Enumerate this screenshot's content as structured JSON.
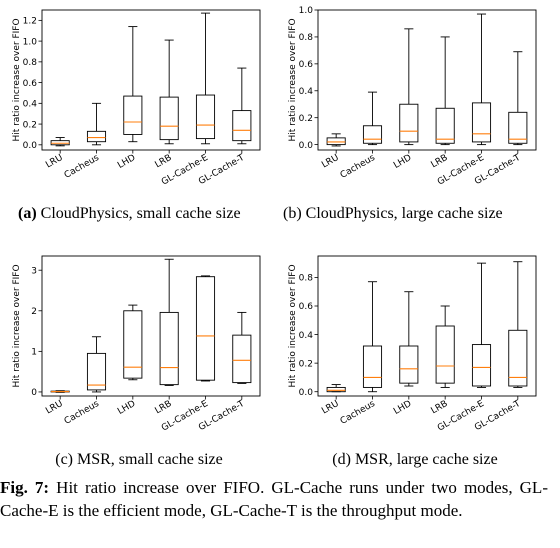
{
  "figure": {
    "caption_label": "Fig. 7:",
    "caption_text": " Hit ratio increase over FIFO.  GL-Cache runs under two modes, GL-Cache-E is the efficient mode, GL-Cache-T is the throughput mode."
  },
  "chart_data": [
    {
      "type": "box",
      "subcaption_label": "(a)",
      "subcaption_text": " CloudPhysics, small cache size",
      "ylabel": "Hit ratio increase over FIFO",
      "ylim": [
        -0.05,
        1.3
      ],
      "yticks": [
        0.0,
        0.2,
        0.4,
        0.6,
        0.8,
        1.0,
        1.2
      ],
      "ytick_labels": [
        "0.0",
        "0.2",
        "0.4",
        "0.6",
        "0.8",
        "1.0",
        "1.2"
      ],
      "categories": [
        "LRU",
        "Cacheus",
        "LHD",
        "LRB",
        "GL-Cache-E",
        "GL-Cache-T"
      ],
      "boxes": [
        {
          "min": -0.01,
          "q1": 0.0,
          "median": 0.015,
          "q3": 0.04,
          "max": 0.07
        },
        {
          "min": 0.0,
          "q1": 0.03,
          "median": 0.07,
          "q3": 0.13,
          "max": 0.4
        },
        {
          "min": 0.03,
          "q1": 0.1,
          "median": 0.22,
          "q3": 0.47,
          "max": 1.14
        },
        {
          "min": 0.01,
          "q1": 0.05,
          "median": 0.18,
          "q3": 0.46,
          "max": 1.01
        },
        {
          "min": 0.01,
          "q1": 0.06,
          "median": 0.19,
          "q3": 0.48,
          "max": 1.27
        },
        {
          "min": 0.01,
          "q1": 0.04,
          "median": 0.14,
          "q3": 0.33,
          "max": 0.74
        }
      ],
      "grid": false,
      "colors": {
        "box": "#000000",
        "median": "#ff7f0e"
      }
    },
    {
      "type": "box",
      "subcaption_label": "(b)",
      "subcaption_text": " CloudPhysics, large cache size",
      "ylabel": "Hit ratio increase over FIFO",
      "ylim": [
        -0.04,
        1.0
      ],
      "yticks": [
        0.0,
        0.2,
        0.4,
        0.6,
        0.8,
        1.0
      ],
      "ytick_labels": [
        "0.0",
        "0.2",
        "0.4",
        "0.6",
        "0.8",
        "1.0"
      ],
      "categories": [
        "LRU",
        "Cacheus",
        "LHD",
        "LRB",
        "GL-Cache-E",
        "GL-Cache-T"
      ],
      "boxes": [
        {
          "min": -0.01,
          "q1": 0.0,
          "median": 0.02,
          "q3": 0.05,
          "max": 0.08
        },
        {
          "min": 0.0,
          "q1": 0.01,
          "median": 0.04,
          "q3": 0.14,
          "max": 0.39
        },
        {
          "min": 0.0,
          "q1": 0.02,
          "median": 0.1,
          "q3": 0.3,
          "max": 0.86
        },
        {
          "min": 0.0,
          "q1": 0.01,
          "median": 0.04,
          "q3": 0.27,
          "max": 0.8
        },
        {
          "min": 0.0,
          "q1": 0.02,
          "median": 0.08,
          "q3": 0.31,
          "max": 0.97
        },
        {
          "min": 0.0,
          "q1": 0.01,
          "median": 0.04,
          "q3": 0.24,
          "max": 0.69
        }
      ],
      "grid": false,
      "colors": {
        "box": "#000000",
        "median": "#ff7f0e"
      }
    },
    {
      "type": "box",
      "subcaption_label": "(c)",
      "subcaption_text": " MSR, small cache size",
      "ylabel": "Hit ratio increase over FIFO",
      "ylim": [
        -0.1,
        3.35
      ],
      "yticks": [
        0,
        1,
        2,
        3
      ],
      "ytick_labels": [
        "0",
        "1",
        "2",
        "3"
      ],
      "categories": [
        "LRU",
        "Cacheus",
        "LHD",
        "LRB",
        "GL-Cache-E",
        "GL-Cache-T"
      ],
      "boxes": [
        {
          "min": -0.01,
          "q1": 0.0,
          "median": 0.01,
          "q3": 0.02,
          "max": 0.03
        },
        {
          "min": 0.0,
          "q1": 0.05,
          "median": 0.17,
          "q3": 0.95,
          "max": 1.36
        },
        {
          "min": 0.3,
          "q1": 0.34,
          "median": 0.61,
          "q3": 2.0,
          "max": 2.14
        },
        {
          "min": 0.16,
          "q1": 0.18,
          "median": 0.6,
          "q3": 1.96,
          "max": 3.27
        },
        {
          "min": 0.27,
          "q1": 0.29,
          "median": 1.38,
          "q3": 2.84,
          "max": 2.86
        },
        {
          "min": 0.21,
          "q1": 0.23,
          "median": 0.78,
          "q3": 1.4,
          "max": 1.96
        }
      ],
      "grid": false,
      "colors": {
        "box": "#000000",
        "median": "#ff7f0e"
      }
    },
    {
      "type": "box",
      "subcaption_label": "(d)",
      "subcaption_text": " MSR, large cache size",
      "ylabel": "Hit ratio increase over FIFO",
      "ylim": [
        -0.03,
        0.95
      ],
      "yticks": [
        0.0,
        0.2,
        0.4,
        0.6,
        0.8
      ],
      "ytick_labels": [
        "0.0",
        "0.2",
        "0.4",
        "0.6",
        "0.8"
      ],
      "categories": [
        "LRU",
        "Cacheus",
        "LHD",
        "LRB",
        "GL-Cache-E",
        "GL-Cache-T"
      ],
      "boxes": [
        {
          "min": 0.0,
          "q1": 0.0,
          "median": 0.01,
          "q3": 0.03,
          "max": 0.05
        },
        {
          "min": 0.0,
          "q1": 0.03,
          "median": 0.1,
          "q3": 0.32,
          "max": 0.77
        },
        {
          "min": 0.04,
          "q1": 0.06,
          "median": 0.16,
          "q3": 0.32,
          "max": 0.7
        },
        {
          "min": 0.03,
          "q1": 0.06,
          "median": 0.18,
          "q3": 0.46,
          "max": 0.6
        },
        {
          "min": 0.03,
          "q1": 0.04,
          "median": 0.17,
          "q3": 0.33,
          "max": 0.9
        },
        {
          "min": 0.03,
          "q1": 0.04,
          "median": 0.1,
          "q3": 0.43,
          "max": 0.91
        }
      ],
      "grid": false,
      "colors": {
        "box": "#000000",
        "median": "#ff7f0e"
      }
    }
  ]
}
